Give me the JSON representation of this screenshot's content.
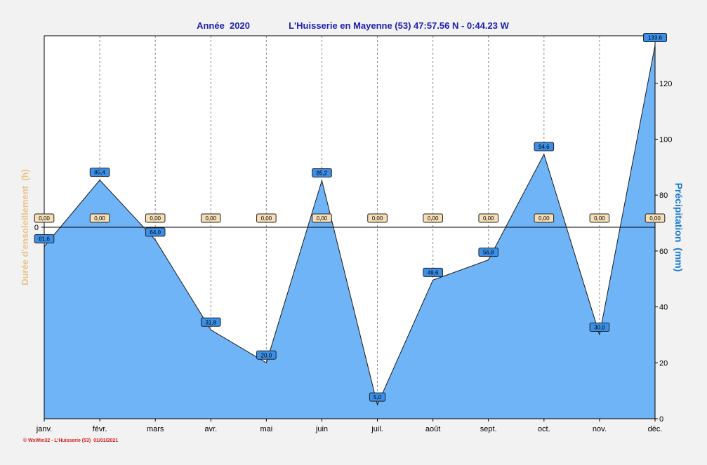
{
  "header": {
    "year_label": "Année  2020",
    "station_label": "L'Huisserie en Mayenne (53) 47:57.56 N - 0:44.23 W"
  },
  "footer": {
    "credit": "© WxWin32 - L'Huisserie (53)  01/01/2021"
  },
  "colors": {
    "background": "#f2f2f2",
    "plot_background": "#ffffff",
    "area_fill": "#6fb4f7",
    "title": "#2020b0",
    "right_axis_label": "#1a7ad6",
    "left_axis_label": "#e8c48a",
    "label_box_blue": "#3b8fe8",
    "label_box_tan": "#f6dfb6",
    "credit": "#cc2020"
  },
  "chart_data": {
    "type": "area",
    "categories": [
      "janv.",
      "févr.",
      "mars",
      "avr.",
      "mai",
      "juin",
      "juil.",
      "août",
      "sept.",
      "oct.",
      "nov.",
      "déc."
    ],
    "series": [
      {
        "axis": "right",
        "values": [
          61.6,
          85.4,
          64.0,
          31.8,
          20.0,
          85.2,
          5.0,
          49.6,
          56.8,
          94.6,
          30.0,
          133.6
        ],
        "labels": [
          "61,6",
          "85,4",
          "64,0",
          "31,8",
          "20,0",
          "85,2",
          "5,0",
          "49,6",
          "56,8",
          "94,6",
          "30,0",
          "133,6"
        ]
      },
      {
        "axis": "left",
        "values": [
          0,
          0,
          0,
          0,
          0,
          0,
          0,
          0,
          0,
          0,
          0,
          0
        ],
        "labels": [
          "0,00",
          "0,00",
          "0,00",
          "0,00",
          "0,00",
          "0,00",
          "0,00",
          "0,00",
          "0,00",
          "0,00",
          "0,00",
          "0,00"
        ]
      }
    ],
    "right_axis": {
      "label": "Précipitation  (mm)",
      "ylim": [
        0,
        137
      ],
      "ticks": [
        0,
        20,
        40,
        60,
        80,
        100,
        120
      ]
    },
    "left_axis": {
      "label": "Durée d'ensoleillement  (h)",
      "ticks": [
        0
      ]
    },
    "grid": "vertical dashed"
  }
}
